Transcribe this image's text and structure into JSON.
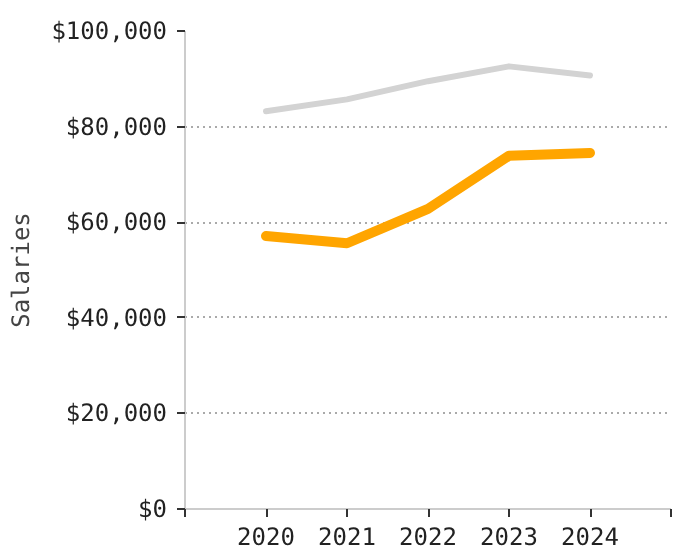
{
  "chart_data": {
    "type": "line",
    "ylabel": "Salaries",
    "x": [
      2020,
      2021,
      2022,
      2023,
      2024
    ],
    "series": [
      {
        "color": "#d3d3d3",
        "values": [
          83200,
          85700,
          89500,
          92600,
          90700
        ]
      },
      {
        "color": "#ffa500",
        "values": [
          57100,
          55600,
          62800,
          73900,
          74500
        ]
      }
    ],
    "xlim": [
      2019,
      2025
    ],
    "xticks": [
      {
        "value": 2019,
        "label": null
      },
      2020,
      2021,
      2022,
      2023,
      2024,
      {
        "value": 2025,
        "label": null
      }
    ],
    "ylim": [
      0,
      100000
    ],
    "yticks": [
      {
        "value": 0,
        "label": "$0"
      },
      {
        "value": 20000,
        "label": "$20,000"
      },
      {
        "value": 40000,
        "label": "$40,000"
      },
      {
        "value": 60000,
        "label": "$60,000"
      },
      {
        "value": 80000,
        "label": "$80,000"
      },
      {
        "value": 100000,
        "label": "$100,000"
      }
    ],
    "grid": "y",
    "line_style": "solid",
    "marker": "none"
  }
}
